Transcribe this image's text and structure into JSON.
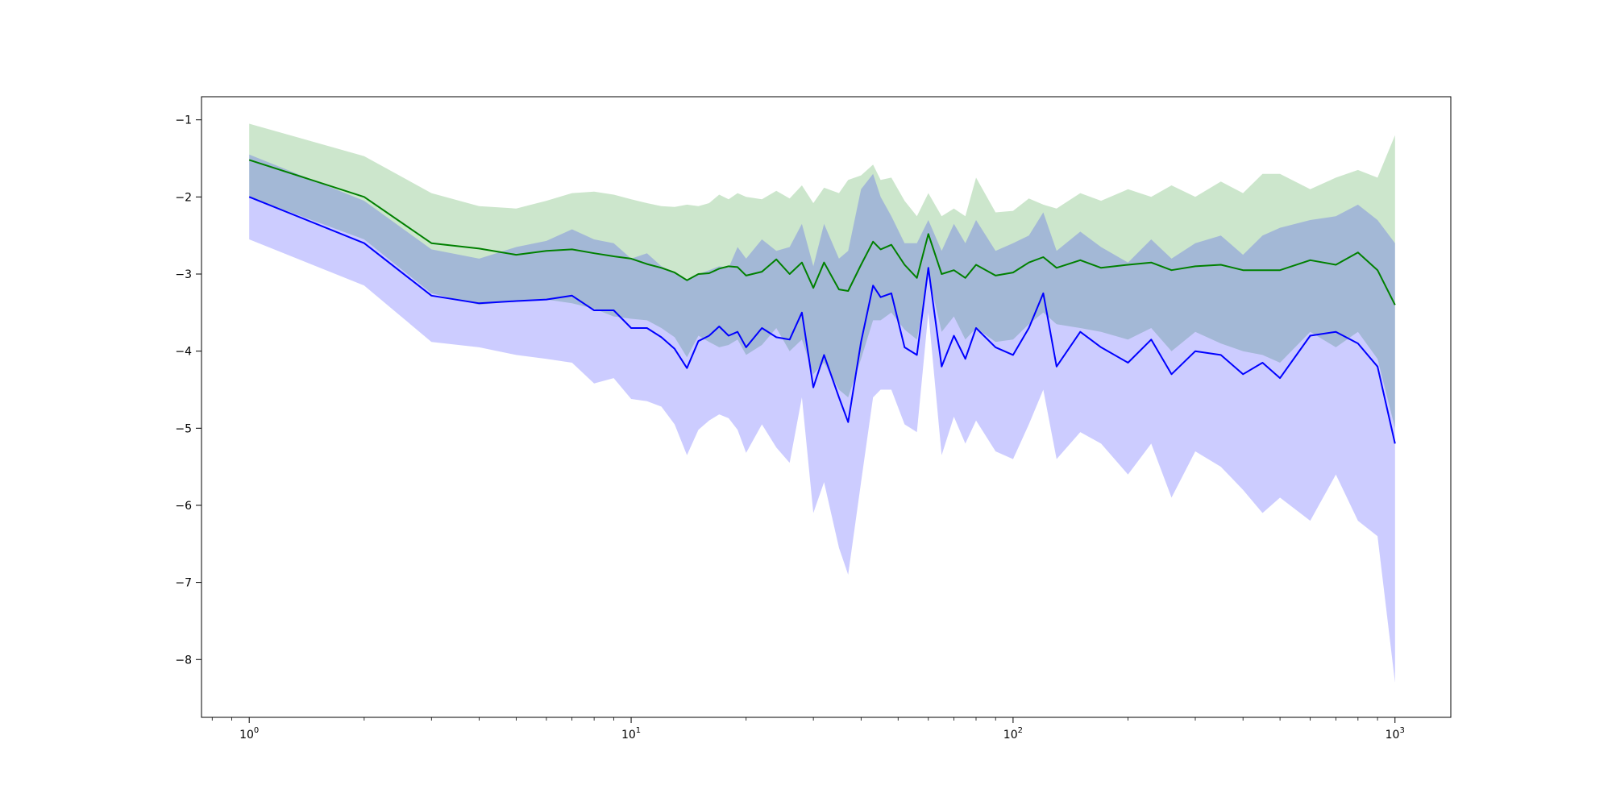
{
  "chart_data": {
    "type": "line",
    "title": "",
    "xlabel": "",
    "ylabel": "",
    "xscale": "log",
    "xlim": [
      0.75,
      1400
    ],
    "ylim": [
      -8.75,
      -0.7
    ],
    "grid": false,
    "legend": "none",
    "x_ticks": [
      {
        "base": "10",
        "exp": "0",
        "value": 1
      },
      {
        "base": "10",
        "exp": "1",
        "value": 10
      },
      {
        "base": "10",
        "exp": "2",
        "value": 100
      },
      {
        "base": "10",
        "exp": "3",
        "value": 1000
      }
    ],
    "y_ticks": [
      {
        "label": "−1",
        "value": -1
      },
      {
        "label": "−2",
        "value": -2
      },
      {
        "label": "−3",
        "value": -3
      },
      {
        "label": "−4",
        "value": -4
      },
      {
        "label": "−5",
        "value": -5
      },
      {
        "label": "−6",
        "value": -6
      },
      {
        "label": "−7",
        "value": -7
      },
      {
        "label": "−8",
        "value": -8
      }
    ],
    "series": [
      {
        "color": "#008000",
        "band_color": "#008000",
        "band_opacity": 0.2,
        "x": [
          1,
          2,
          3,
          4,
          5,
          6,
          7,
          8,
          9,
          10,
          11,
          12,
          13,
          14,
          15,
          16,
          17,
          18,
          19,
          20,
          22,
          24,
          26,
          28,
          30,
          32,
          35,
          37,
          40,
          43,
          45,
          48,
          52,
          56,
          60,
          65,
          70,
          75,
          80,
          90,
          100,
          110,
          120,
          130,
          150,
          170,
          200,
          230,
          260,
          300,
          350,
          400,
          450,
          500,
          600,
          700,
          800,
          900,
          1000
        ],
        "mean": [
          -1.52,
          -2.0,
          -2.6,
          -2.67,
          -2.75,
          -2.7,
          -2.68,
          -2.73,
          -2.77,
          -2.8,
          -2.87,
          -2.92,
          -2.98,
          -3.08,
          -3.0,
          -2.99,
          -2.93,
          -2.9,
          -2.91,
          -3.02,
          -2.97,
          -2.81,
          -3.0,
          -2.85,
          -3.18,
          -2.85,
          -3.2,
          -3.22,
          -2.88,
          -2.58,
          -2.68,
          -2.62,
          -2.88,
          -3.05,
          -2.48,
          -3.0,
          -2.95,
          -3.05,
          -2.88,
          -3.02,
          -2.98,
          -2.85,
          -2.78,
          -2.92,
          -2.82,
          -2.92,
          -2.88,
          -2.85,
          -2.95,
          -2.9,
          -2.88,
          -2.95,
          -2.95,
          -2.95,
          -2.82,
          -2.88,
          -2.72,
          -2.95,
          -3.4
        ],
        "upper": [
          -1.05,
          -1.47,
          -1.95,
          -2.12,
          -2.15,
          -2.05,
          -1.95,
          -1.93,
          -1.97,
          -2.03,
          -2.08,
          -2.12,
          -2.13,
          -2.1,
          -2.12,
          -2.08,
          -1.97,
          -2.03,
          -1.95,
          -2.0,
          -2.03,
          -1.92,
          -2.02,
          -1.85,
          -2.08,
          -1.88,
          -1.95,
          -1.78,
          -1.72,
          -1.58,
          -1.78,
          -1.75,
          -2.05,
          -2.25,
          -1.95,
          -2.25,
          -2.15,
          -2.25,
          -1.75,
          -2.2,
          -2.18,
          -2.02,
          -2.1,
          -2.15,
          -1.95,
          -2.05,
          -1.9,
          -2.0,
          -1.85,
          -2.0,
          -1.8,
          -1.95,
          -1.7,
          -1.7,
          -1.9,
          -1.75,
          -1.65,
          -1.75,
          -1.2
        ],
        "lower": [
          -2.0,
          -2.55,
          -3.25,
          -3.4,
          -3.35,
          -3.33,
          -3.38,
          -3.45,
          -3.55,
          -3.58,
          -3.6,
          -3.7,
          -3.82,
          -4.08,
          -3.8,
          -3.88,
          -3.95,
          -3.92,
          -3.85,
          -4.05,
          -3.92,
          -3.7,
          -4.0,
          -3.85,
          -4.3,
          -4.15,
          -4.5,
          -4.6,
          -4.1,
          -3.6,
          -3.6,
          -3.5,
          -3.72,
          -3.85,
          -3.0,
          -3.75,
          -3.55,
          -3.85,
          -3.7,
          -3.88,
          -3.85,
          -3.65,
          -3.5,
          -3.65,
          -3.7,
          -3.75,
          -3.85,
          -3.7,
          -4.0,
          -3.75,
          -3.9,
          -4.0,
          -4.05,
          -4.15,
          -3.75,
          -3.95,
          -3.75,
          -4.1,
          -5.0
        ]
      },
      {
        "color": "#0000ff",
        "band_color": "#0000ff",
        "band_opacity": 0.2,
        "x": [
          1,
          2,
          3,
          4,
          5,
          6,
          7,
          8,
          9,
          10,
          11,
          12,
          13,
          14,
          15,
          16,
          17,
          18,
          19,
          20,
          22,
          24,
          26,
          28,
          30,
          32,
          35,
          37,
          40,
          43,
          45,
          48,
          52,
          56,
          60,
          65,
          70,
          75,
          80,
          90,
          100,
          110,
          120,
          130,
          150,
          170,
          200,
          230,
          260,
          300,
          350,
          400,
          450,
          500,
          600,
          700,
          800,
          900,
          1000
        ],
        "mean": [
          -2.0,
          -2.6,
          -3.28,
          -3.38,
          -3.35,
          -3.33,
          -3.28,
          -3.47,
          -3.47,
          -3.7,
          -3.7,
          -3.82,
          -3.97,
          -4.22,
          -3.87,
          -3.8,
          -3.68,
          -3.8,
          -3.75,
          -3.95,
          -3.7,
          -3.82,
          -3.85,
          -3.5,
          -4.47,
          -4.05,
          -4.6,
          -4.92,
          -3.88,
          -3.15,
          -3.3,
          -3.25,
          -3.95,
          -4.05,
          -2.92,
          -4.2,
          -3.8,
          -4.1,
          -3.7,
          -3.95,
          -4.05,
          -3.7,
          -3.25,
          -4.2,
          -3.75,
          -3.95,
          -4.15,
          -3.85,
          -4.3,
          -4.0,
          -4.05,
          -4.3,
          -4.15,
          -4.35,
          -3.8,
          -3.75,
          -3.9,
          -4.2,
          -5.2
        ],
        "upper": [
          -1.45,
          -2.05,
          -2.68,
          -2.8,
          -2.65,
          -2.57,
          -2.42,
          -2.55,
          -2.6,
          -2.8,
          -2.73,
          -2.9,
          -2.98,
          -3.08,
          -3.0,
          -2.95,
          -2.9,
          -2.92,
          -2.65,
          -2.8,
          -2.55,
          -2.7,
          -2.65,
          -2.35,
          -2.9,
          -2.35,
          -2.8,
          -2.7,
          -1.9,
          -1.7,
          -2.0,
          -2.25,
          -2.6,
          -2.6,
          -2.3,
          -2.7,
          -2.35,
          -2.6,
          -2.3,
          -2.7,
          -2.6,
          -2.5,
          -2.2,
          -2.7,
          -2.45,
          -2.65,
          -2.85,
          -2.55,
          -2.8,
          -2.6,
          -2.5,
          -2.75,
          -2.5,
          -2.4,
          -2.3,
          -2.25,
          -2.1,
          -2.3,
          -2.6
        ],
        "lower": [
          -2.55,
          -3.15,
          -3.88,
          -3.95,
          -4.05,
          -4.1,
          -4.15,
          -4.42,
          -4.35,
          -4.62,
          -4.65,
          -4.72,
          -4.95,
          -5.35,
          -5.02,
          -4.9,
          -4.82,
          -4.87,
          -5.02,
          -5.32,
          -4.95,
          -5.25,
          -5.45,
          -4.6,
          -6.1,
          -5.7,
          -6.55,
          -6.9,
          -5.7,
          -4.6,
          -4.5,
          -4.5,
          -4.95,
          -5.05,
          -3.5,
          -5.35,
          -4.85,
          -5.2,
          -4.9,
          -5.3,
          -5.4,
          -4.95,
          -4.5,
          -5.4,
          -5.05,
          -5.2,
          -5.6,
          -5.2,
          -5.9,
          -5.3,
          -5.5,
          -5.8,
          -6.1,
          -5.9,
          -6.2,
          -5.6,
          -6.2,
          -6.4,
          -8.3
        ]
      }
    ]
  }
}
